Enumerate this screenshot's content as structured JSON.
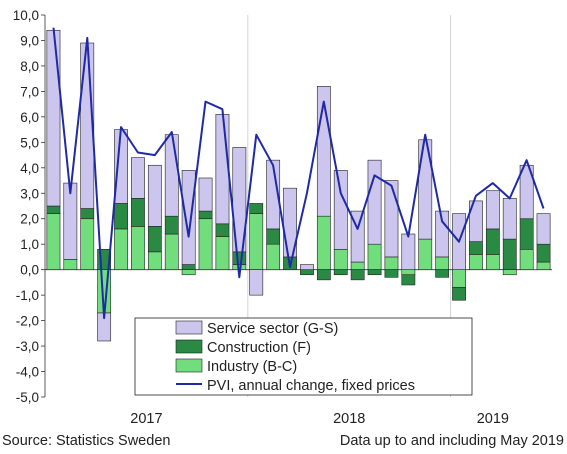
{
  "colors": {
    "service": "#ccc5ee",
    "construction": "#2a8a44",
    "industry": "#72dd7c",
    "pvi_line": "#1f2aa6",
    "bar_edge": "#222222",
    "grid": "#d4d4d4"
  },
  "chart_data": {
    "type": "bar",
    "stacked": true,
    "x_period_labels": [
      "2017",
      "2018",
      "2019"
    ],
    "period_start_index": [
      0,
      12,
      24,
      29
    ],
    "ylim": [
      -5,
      10
    ],
    "y_tick_values": [
      -5,
      -4,
      -3,
      -2,
      -1,
      0,
      1,
      2,
      3,
      4,
      5,
      6,
      7,
      8,
      9,
      10
    ],
    "y_tick_labels": [
      "-5,0",
      "-4,0",
      "-3,0",
      "-2,0",
      "-1,0",
      "0,0",
      "1,0",
      "2,0",
      "3,0",
      "4,0",
      "5,0",
      "6,0",
      "7,0",
      "8,0",
      "9,0",
      "10,0"
    ],
    "grid": "vertical separators between years",
    "legend_position": "bottom-center",
    "series": [
      {
        "name": "Service sector (G-S)",
        "key": "service",
        "values": [
          6.9,
          3.0,
          6.5,
          -1.1,
          2.9,
          1.6,
          2.4,
          3.2,
          3.7,
          1.3,
          4.3,
          4.1,
          -1.0,
          2.7,
          2.7,
          0.2,
          5.1,
          3.1,
          2.0,
          3.3,
          3.0,
          1.4,
          3.9,
          1.8,
          2.2,
          1.6,
          1.5,
          1.6,
          2.1,
          1.2
        ]
      },
      {
        "name": "Construction (F)",
        "key": "construction",
        "values": [
          0.3,
          0.0,
          0.4,
          0.8,
          1.0,
          1.1,
          1.0,
          0.7,
          0.2,
          0.3,
          0.5,
          0.5,
          0.4,
          0.6,
          0.5,
          -0.2,
          -0.4,
          -0.2,
          -0.4,
          -0.2,
          -0.3,
          -0.4,
          0.0,
          -0.3,
          -0.5,
          0.5,
          1.0,
          1.2,
          1.2,
          0.7
        ]
      },
      {
        "name": "Industry (B-C)",
        "key": "industry",
        "values": [
          2.2,
          0.4,
          2.0,
          -1.7,
          1.6,
          1.7,
          0.7,
          1.4,
          -0.2,
          2.0,
          1.3,
          0.2,
          2.2,
          1.0,
          0.0,
          0.0,
          2.1,
          0.8,
          0.3,
          1.0,
          0.5,
          -0.2,
          1.2,
          0.5,
          -0.7,
          0.6,
          0.6,
          -0.2,
          0.8,
          0.3
        ]
      },
      {
        "name": "PVI, annual change, fixed prices",
        "key": "pvi",
        "type": "line",
        "values": [
          9.5,
          3.0,
          9.1,
          -1.9,
          5.6,
          4.6,
          4.5,
          5.4,
          1.3,
          6.6,
          6.3,
          -0.3,
          5.3,
          4.1,
          0.1,
          3.0,
          6.6,
          3.0,
          1.6,
          3.7,
          3.3,
          1.3,
          5.3,
          1.9,
          1.1,
          2.9,
          3.4,
          2.8,
          4.3,
          2.4
        ]
      }
    ]
  },
  "footer": {
    "source": "Source: Statistics Sweden",
    "note": "Data up to and including May 2019"
  }
}
